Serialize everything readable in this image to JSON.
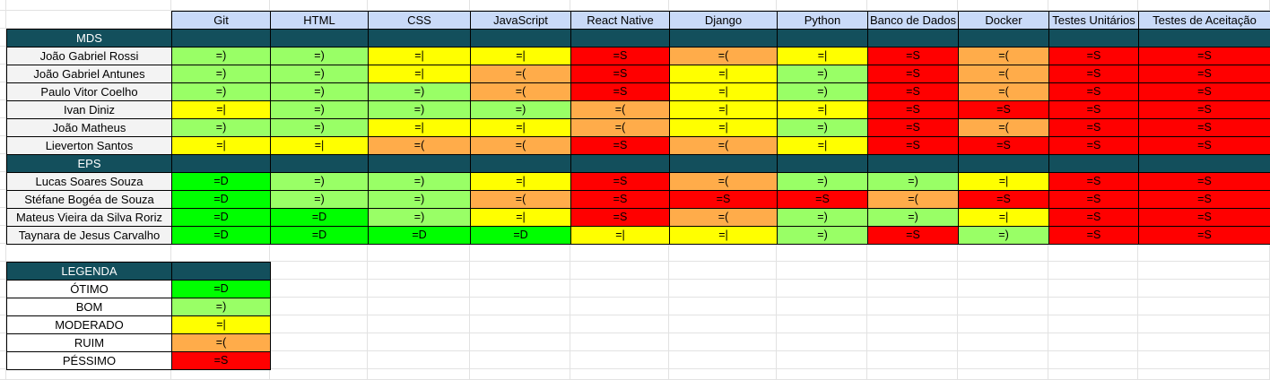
{
  "colors": {
    "otimo": "#00ff00",
    "bom": "#99ff66",
    "moderado": "#ffff00",
    "ruim": "#ffac4a",
    "pessimo": "#ff0000",
    "header_bg": "#c9daf8",
    "band_bg": "#134f5c",
    "name_bg": "#f3f3f3"
  },
  "symbols": {
    "otimo": "=D",
    "bom": "=)",
    "moderado": "=|",
    "ruim": "=(",
    "pessimo": "=S"
  },
  "columns": [
    "Git",
    "HTML",
    "CSS",
    "JavaScript",
    "React Native",
    "Django",
    "Python",
    "Banco de Dados",
    "Docker",
    "Testes Unitários",
    "Testes de Aceitação"
  ],
  "groups": [
    {
      "label": "MDS",
      "rows": [
        {
          "name": "João Gabriel Rossi",
          "ratings": [
            "bom",
            "bom",
            "moderado",
            "moderado",
            "pessimo",
            "ruim",
            "moderado",
            "pessimo",
            "ruim",
            "pessimo",
            "pessimo"
          ]
        },
        {
          "name": "João Gabriel Antunes",
          "ratings": [
            "bom",
            "bom",
            "moderado",
            "ruim",
            "pessimo",
            "moderado",
            "bom",
            "pessimo",
            "ruim",
            "pessimo",
            "pessimo"
          ]
        },
        {
          "name": "Paulo Vitor Coelho",
          "ratings": [
            "bom",
            "bom",
            "bom",
            "ruim",
            "pessimo",
            "moderado",
            "bom",
            "pessimo",
            "ruim",
            "pessimo",
            "pessimo"
          ]
        },
        {
          "name": "Ivan Diniz",
          "ratings": [
            "moderado",
            "bom",
            "bom",
            "bom",
            "ruim",
            "moderado",
            "moderado",
            "pessimo",
            "pessimo",
            "pessimo",
            "pessimo"
          ]
        },
        {
          "name": "João Matheus",
          "ratings": [
            "bom",
            "bom",
            "moderado",
            "moderado",
            "ruim",
            "moderado",
            "bom",
            "pessimo",
            "ruim",
            "pessimo",
            "pessimo"
          ]
        },
        {
          "name": "Lieverton Santos",
          "ratings": [
            "moderado",
            "moderado",
            "ruim",
            "ruim",
            "pessimo",
            "ruim",
            "moderado",
            "pessimo",
            "pessimo",
            "pessimo",
            "pessimo"
          ]
        }
      ]
    },
    {
      "label": "EPS",
      "rows": [
        {
          "name": "Lucas Soares Souza",
          "ratings": [
            "otimo",
            "bom",
            "bom",
            "moderado",
            "pessimo",
            "ruim",
            "bom",
            "bom",
            "moderado",
            "pessimo",
            "pessimo"
          ]
        },
        {
          "name": "Stéfane Bogéa de Souza",
          "ratings": [
            "otimo",
            "bom",
            "bom",
            "ruim",
            "pessimo",
            "pessimo",
            "pessimo",
            "ruim",
            "pessimo",
            "pessimo",
            "pessimo"
          ]
        },
        {
          "name": "Mateus Vieira da Silva Roriz",
          "ratings": [
            "otimo",
            "otimo",
            "bom",
            "moderado",
            "pessimo",
            "ruim",
            "bom",
            "bom",
            "moderado",
            "pessimo",
            "pessimo"
          ]
        },
        {
          "name": "Taynara de Jesus Carvalho",
          "ratings": [
            "otimo",
            "otimo",
            "otimo",
            "otimo",
            "moderado",
            "moderado",
            "bom",
            "pessimo",
            "bom",
            "pessimo",
            "pessimo"
          ]
        }
      ]
    }
  ],
  "legend": {
    "title": "LEGENDA",
    "items": [
      {
        "key": "otimo",
        "label": "ÓTIMO"
      },
      {
        "key": "bom",
        "label": "BOM"
      },
      {
        "key": "moderado",
        "label": "MODERADO"
      },
      {
        "key": "ruim",
        "label": "RUIM"
      },
      {
        "key": "pessimo",
        "label": "PÉSSIMO"
      }
    ]
  }
}
